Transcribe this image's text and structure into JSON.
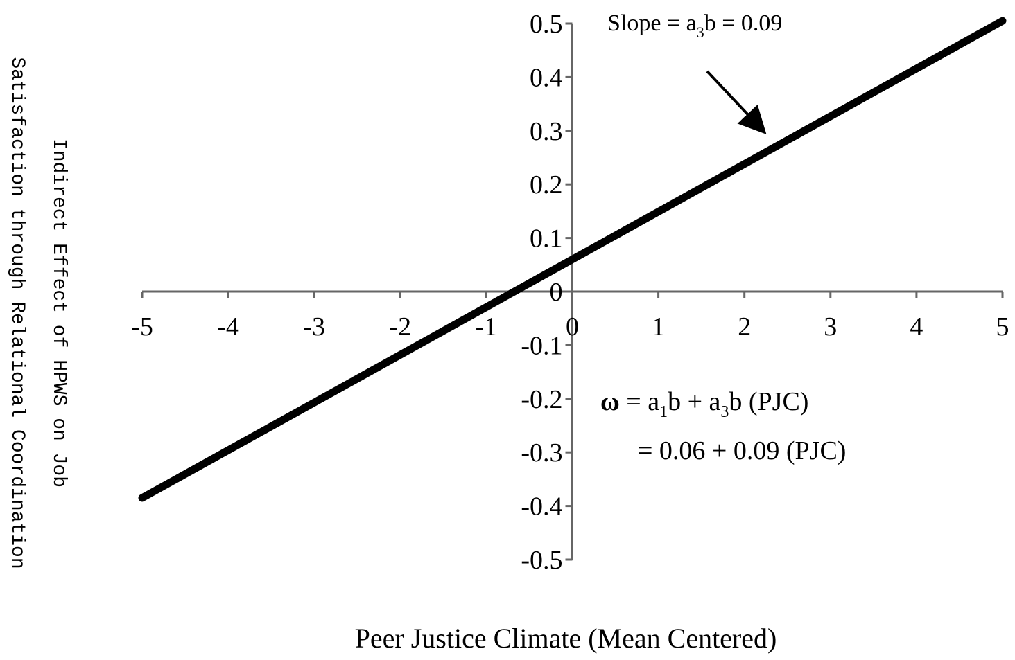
{
  "chart_data": {
    "type": "line",
    "title": "",
    "xlabel": "Peer Justice Climate (Mean Centered)",
    "ylabel_lines": [
      "Indirect Effect of HPWS on Job",
      "Satisfaction through Relational Coordination"
    ],
    "xlim": [
      -5,
      5
    ],
    "ylim": [
      -0.5,
      0.5
    ],
    "x_ticks": [
      -5,
      -4,
      -3,
      -2,
      -1,
      0,
      1,
      2,
      3,
      4,
      5
    ],
    "x_tick_labels": [
      "-5",
      "-4",
      "-3",
      "-2",
      "-1",
      "0",
      "1",
      "2",
      "3",
      "4",
      "5"
    ],
    "y_ticks": [
      0.5,
      0.4,
      0.3,
      0.2,
      0.1,
      0,
      -0.1,
      -0.2,
      -0.3,
      -0.4,
      -0.5
    ],
    "y_tick_labels": [
      "0.5",
      "0.4",
      "0.3",
      "0.2",
      "0.1",
      "0",
      "-0.1",
      "-0.2",
      "-0.3",
      "-0.4",
      "-0.5"
    ],
    "grid": false,
    "legend": "none",
    "series": [
      {
        "x": [
          -5,
          5
        ],
        "y": [
          -0.385,
          0.505
        ],
        "color": "#000000"
      }
    ],
    "annotations": {
      "slope": {
        "prefix": "Slope = a",
        "sub": "3",
        "suffix": "b =  0.09"
      },
      "equation_line1": {
        "omega": "ω",
        "part1": " = a",
        "sub1": "1",
        "part2": "b + a",
        "sub2": "3",
        "part3": "b (PJC)"
      },
      "equation_line2": "= 0.06 + 0.09 (PJC)"
    }
  }
}
